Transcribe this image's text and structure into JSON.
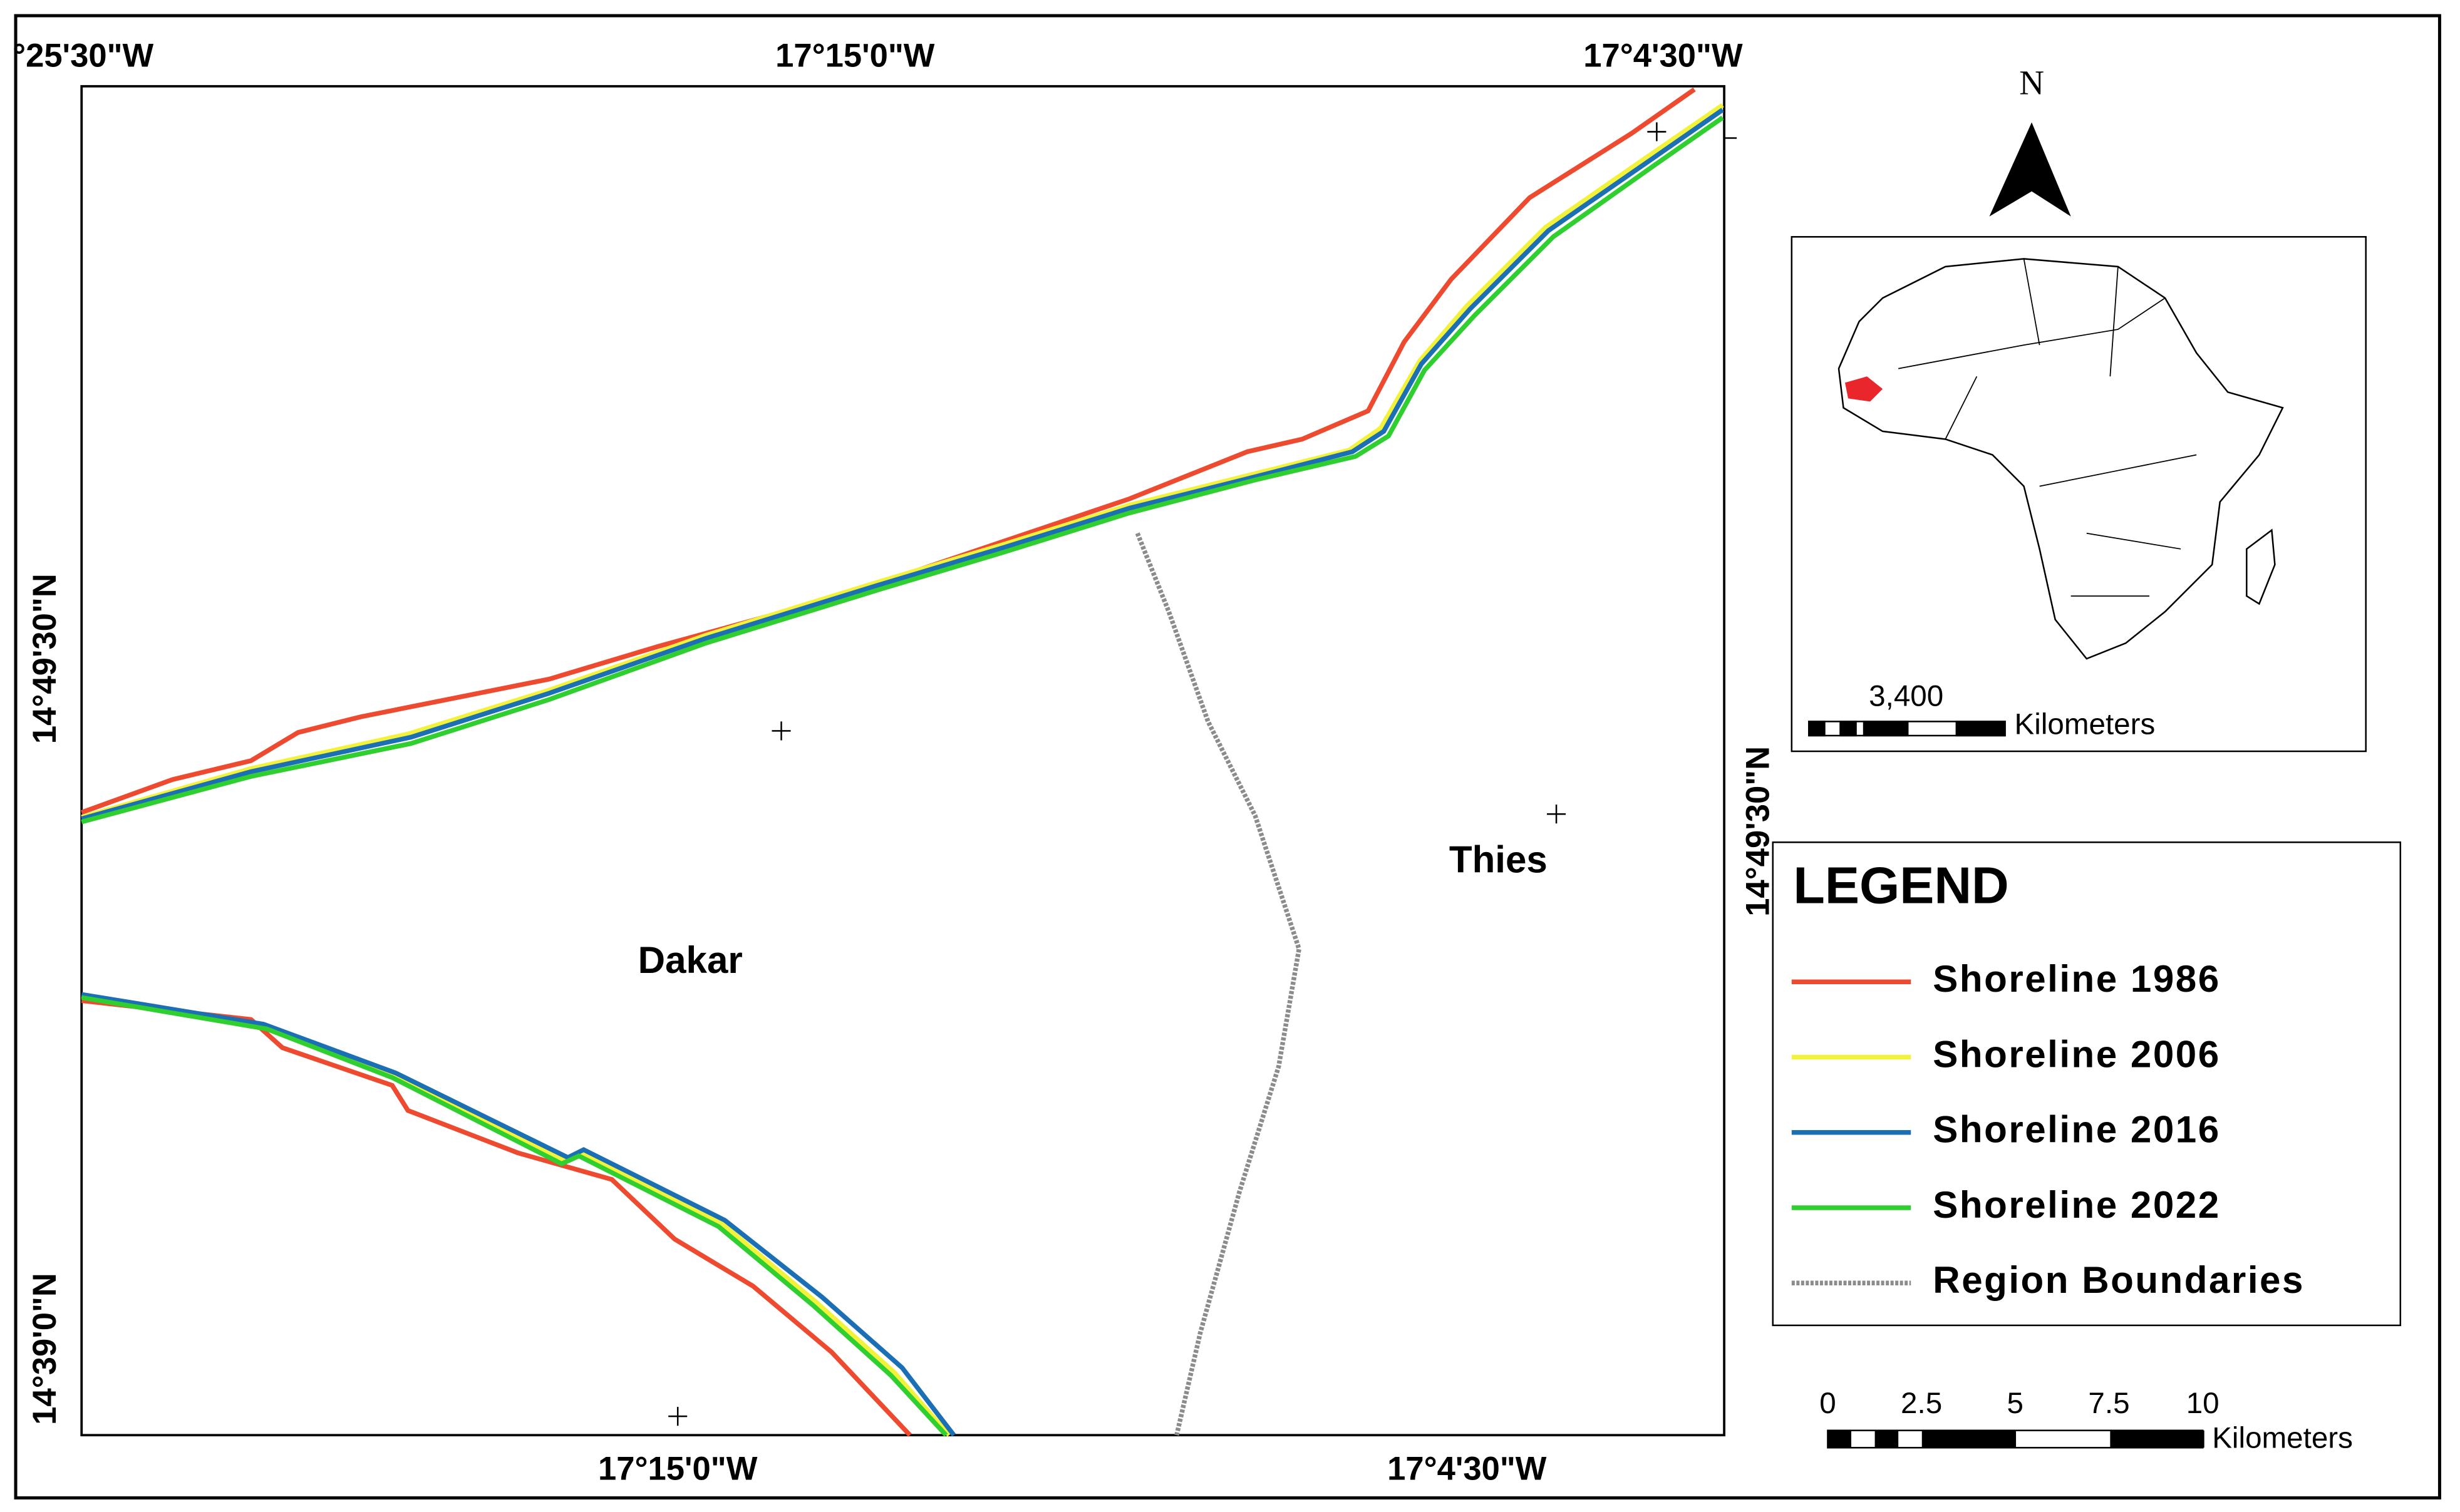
{
  "coordinates": {
    "top": [
      "°25'30\"W",
      "17°15'0\"W",
      "17°4'30\"W"
    ],
    "bottom": [
      "17°15'0\"W",
      "17°4'30\"W"
    ],
    "left": [
      "14°49'30\"N",
      "14°39'0\"N"
    ],
    "right": [
      "14°49'30\"N"
    ]
  },
  "places": [
    "Dakar",
    "Thies"
  ],
  "north_arrow": "N",
  "inset": {
    "scale_value": "3,400",
    "scale_unit": "Kilometers"
  },
  "legend": {
    "title": "LEGEND",
    "items": [
      {
        "label": "Shoreline 1986",
        "color": "#ee4a2f"
      },
      {
        "label": "Shoreline  2006",
        "color": "#f2f23a"
      },
      {
        "label": "Shoreline 2016",
        "color": "#1a6fb5"
      },
      {
        "label": "Shoreline 2022",
        "color": "#2fcf2f"
      },
      {
        "label": "Region Boundaries",
        "color": "#8c8c8c"
      }
    ]
  },
  "scale_bar": {
    "ticks": [
      "0",
      "2.5",
      "5",
      "7.5",
      "10"
    ],
    "unit": "Kilometers"
  }
}
